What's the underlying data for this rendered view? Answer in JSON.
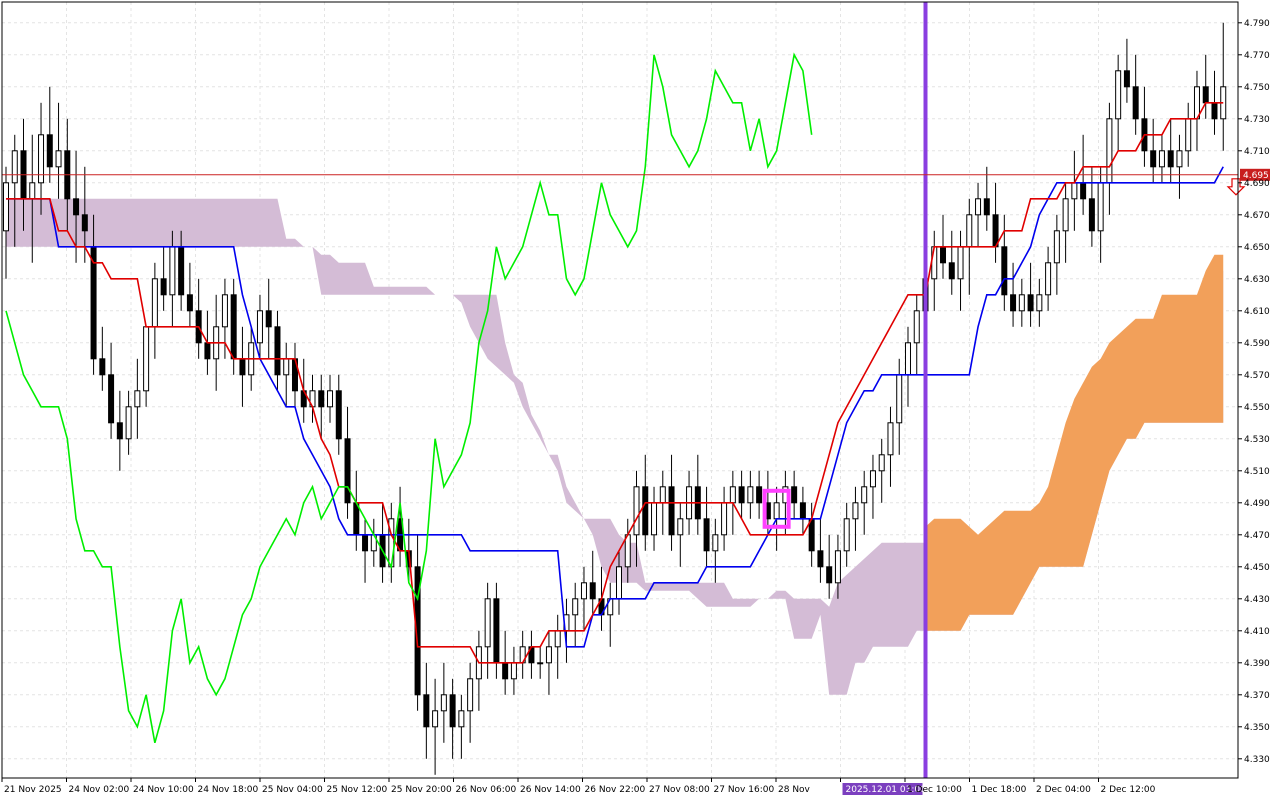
{
  "chart_data": {
    "type": "candlestick",
    "instrument_current_price": "4.695",
    "y_ticks": [
      "4.790",
      "4.770",
      "4.750",
      "4.730",
      "4.710",
      "4.690",
      "4.670",
      "4.650",
      "4.630",
      "4.610",
      "4.590",
      "4.570",
      "4.550",
      "4.530",
      "4.510",
      "4.490",
      "4.470",
      "4.450",
      "4.430",
      "4.410",
      "4.390",
      "4.370",
      "4.350",
      "4.330"
    ],
    "y_range": [
      4.318,
      4.803
    ],
    "x_labels": [
      "21 Nov 2025",
      "24 Nov 02:00",
      "24 Nov 10:00",
      "24 Nov 18:00",
      "25 Nov 04:00",
      "25 Nov 12:00",
      "25 Nov 20:00",
      "26 Nov 06:00",
      "26 Nov 14:00",
      "26 Nov 22:00",
      "27 Nov 08:00",
      "27 Nov 16:00",
      "28 Nov",
      "2025.12.01 03:00",
      "1 Dec 10:00",
      "1 Dec 18:00",
      "2 Dec 04:00",
      "2 Dec 12:00"
    ],
    "highlighted_x_label": "2025.12.01 03:00",
    "bar_count": 140,
    "current_bar_index": 105,
    "candles": [
      [
        4.66,
        4.7,
        4.63,
        4.69
      ],
      [
        4.69,
        4.72,
        4.65,
        4.71
      ],
      [
        4.71,
        4.73,
        4.66,
        4.68
      ],
      [
        4.68,
        4.72,
        4.64,
        4.69
      ],
      [
        4.69,
        4.74,
        4.67,
        4.72
      ],
      [
        4.72,
        4.75,
        4.69,
        4.7
      ],
      [
        4.7,
        4.74,
        4.68,
        4.71
      ],
      [
        4.71,
        4.73,
        4.66,
        4.68
      ],
      [
        4.68,
        4.71,
        4.64,
        4.67
      ],
      [
        4.67,
        4.7,
        4.64,
        4.66
      ],
      [
        4.65,
        4.67,
        4.57,
        4.58
      ],
      [
        4.58,
        4.6,
        4.56,
        4.57
      ],
      [
        4.57,
        4.59,
        4.53,
        4.54
      ],
      [
        4.54,
        4.56,
        4.51,
        4.53
      ],
      [
        4.53,
        4.56,
        4.52,
        4.55
      ],
      [
        4.55,
        4.58,
        4.53,
        4.56
      ],
      [
        4.56,
        4.6,
        4.55,
        4.6
      ],
      [
        4.6,
        4.64,
        4.58,
        4.63
      ],
      [
        4.63,
        4.65,
        4.61,
        4.62
      ],
      [
        4.62,
        4.66,
        4.6,
        4.65
      ],
      [
        4.65,
        4.66,
        4.61,
        4.62
      ],
      [
        4.62,
        4.64,
        4.6,
        4.61
      ],
      [
        4.61,
        4.63,
        4.58,
        4.59
      ],
      [
        4.59,
        4.61,
        4.57,
        4.58
      ],
      [
        4.58,
        4.62,
        4.56,
        4.6
      ],
      [
        4.6,
        4.63,
        4.58,
        4.62
      ],
      [
        4.62,
        4.63,
        4.57,
        4.58
      ],
      [
        4.58,
        4.6,
        4.55,
        4.57
      ],
      [
        4.57,
        4.6,
        4.56,
        4.59
      ],
      [
        4.59,
        4.62,
        4.58,
        4.61
      ],
      [
        4.61,
        4.63,
        4.58,
        4.6
      ],
      [
        4.6,
        4.61,
        4.56,
        4.57
      ],
      [
        4.57,
        4.59,
        4.55,
        4.58
      ],
      [
        4.58,
        4.59,
        4.55,
        4.56
      ],
      [
        4.56,
        4.58,
        4.54,
        4.55
      ],
      [
        4.55,
        4.57,
        4.54,
        4.56
      ],
      [
        4.56,
        4.57,
        4.53,
        4.55
      ],
      [
        4.55,
        4.57,
        4.54,
        4.56
      ],
      [
        4.56,
        4.57,
        4.52,
        4.53
      ],
      [
        4.53,
        4.55,
        4.48,
        4.49
      ],
      [
        4.49,
        4.51,
        4.46,
        4.47
      ],
      [
        4.47,
        4.48,
        4.44,
        4.46
      ],
      [
        4.46,
        4.48,
        4.45,
        4.47
      ],
      [
        4.47,
        4.49,
        4.44,
        4.45
      ],
      [
        4.45,
        4.49,
        4.44,
        4.48
      ],
      [
        4.48,
        4.5,
        4.45,
        4.46
      ],
      [
        4.46,
        4.48,
        4.44,
        4.45
      ],
      [
        4.45,
        4.47,
        4.36,
        4.37
      ],
      [
        4.37,
        4.39,
        4.33,
        4.35
      ],
      [
        4.35,
        4.38,
        4.32,
        4.36
      ],
      [
        4.36,
        4.39,
        4.34,
        4.37
      ],
      [
        4.37,
        4.38,
        4.33,
        4.35
      ],
      [
        4.35,
        4.37,
        4.33,
        4.36
      ],
      [
        4.36,
        4.39,
        4.34,
        4.38
      ],
      [
        4.38,
        4.41,
        4.36,
        4.4
      ],
      [
        4.4,
        4.44,
        4.38,
        4.43
      ],
      [
        4.43,
        4.44,
        4.38,
        4.39
      ],
      [
        4.39,
        4.41,
        4.37,
        4.38
      ],
      [
        4.38,
        4.4,
        4.37,
        4.39
      ],
      [
        4.39,
        4.41,
        4.38,
        4.4
      ],
      [
        4.4,
        4.41,
        4.38,
        4.39
      ],
      [
        4.39,
        4.4,
        4.38,
        4.39
      ],
      [
        4.39,
        4.41,
        4.37,
        4.4
      ],
      [
        4.4,
        4.42,
        4.38,
        4.41
      ],
      [
        4.41,
        4.43,
        4.39,
        4.42
      ],
      [
        4.42,
        4.44,
        4.4,
        4.43
      ],
      [
        4.43,
        4.45,
        4.41,
        4.44
      ],
      [
        4.44,
        4.46,
        4.42,
        4.43
      ],
      [
        4.43,
        4.45,
        4.41,
        4.42
      ],
      [
        4.42,
        4.44,
        4.4,
        4.43
      ],
      [
        4.43,
        4.46,
        4.42,
        4.45
      ],
      [
        4.45,
        4.48,
        4.44,
        4.47
      ],
      [
        4.47,
        4.51,
        4.45,
        4.5
      ],
      [
        4.5,
        4.52,
        4.46,
        4.47
      ],
      [
        4.47,
        4.5,
        4.46,
        4.49
      ],
      [
        4.49,
        4.51,
        4.47,
        4.5
      ],
      [
        4.5,
        4.52,
        4.46,
        4.47
      ],
      [
        4.47,
        4.49,
        4.45,
        4.48
      ],
      [
        4.48,
        4.51,
        4.47,
        4.5
      ],
      [
        4.5,
        4.52,
        4.47,
        4.48
      ],
      [
        4.48,
        4.5,
        4.45,
        4.46
      ],
      [
        4.46,
        4.48,
        4.44,
        4.47
      ],
      [
        4.47,
        4.5,
        4.46,
        4.49
      ],
      [
        4.49,
        4.51,
        4.47,
        4.5
      ],
      [
        4.5,
        4.51,
        4.48,
        4.49
      ],
      [
        4.49,
        4.51,
        4.48,
        4.5
      ],
      [
        4.5,
        4.51,
        4.48,
        4.49
      ],
      [
        4.49,
        4.51,
        4.47,
        4.48
      ],
      [
        4.48,
        4.5,
        4.46,
        4.49
      ],
      [
        4.49,
        4.51,
        4.47,
        4.5
      ],
      [
        4.5,
        4.51,
        4.48,
        4.49
      ],
      [
        4.49,
        4.5,
        4.47,
        4.48
      ],
      [
        4.48,
        4.49,
        4.45,
        4.46
      ],
      [
        4.46,
        4.48,
        4.44,
        4.45
      ],
      [
        4.45,
        4.47,
        4.43,
        4.44
      ],
      [
        4.44,
        4.47,
        4.43,
        4.46
      ],
      [
        4.46,
        4.49,
        4.45,
        4.48
      ],
      [
        4.48,
        4.5,
        4.46,
        4.49
      ],
      [
        4.49,
        4.51,
        4.47,
        4.5
      ],
      [
        4.5,
        4.52,
        4.48,
        4.51
      ],
      [
        4.51,
        4.53,
        4.49,
        4.52
      ],
      [
        4.52,
        4.55,
        4.5,
        4.54
      ],
      [
        4.54,
        4.58,
        4.52,
        4.57
      ],
      [
        4.57,
        4.6,
        4.55,
        4.59
      ],
      [
        4.59,
        4.62,
        4.57,
        4.61
      ],
      [
        4.61,
        4.64,
        4.59,
        4.63
      ],
      [
        4.63,
        4.66,
        4.61,
        4.65
      ],
      [
        4.65,
        4.67,
        4.63,
        4.64
      ],
      [
        4.64,
        4.66,
        4.62,
        4.63
      ],
      [
        4.63,
        4.66,
        4.61,
        4.65
      ],
      [
        4.65,
        4.68,
        4.62,
        4.67
      ],
      [
        4.67,
        4.69,
        4.65,
        4.68
      ],
      [
        4.68,
        4.7,
        4.66,
        4.67
      ],
      [
        4.67,
        4.69,
        4.64,
        4.65
      ],
      [
        4.65,
        4.67,
        4.61,
        4.62
      ],
      [
        4.62,
        4.64,
        4.6,
        4.61
      ],
      [
        4.61,
        4.63,
        4.6,
        4.62
      ],
      [
        4.62,
        4.64,
        4.6,
        4.61
      ],
      [
        4.61,
        4.63,
        4.6,
        4.62
      ],
      [
        4.62,
        4.65,
        4.61,
        4.64
      ],
      [
        4.64,
        4.67,
        4.62,
        4.66
      ],
      [
        4.66,
        4.69,
        4.64,
        4.68
      ],
      [
        4.68,
        4.71,
        4.66,
        4.69
      ],
      [
        4.69,
        4.72,
        4.67,
        4.68
      ],
      [
        4.68,
        4.7,
        4.65,
        4.66
      ],
      [
        4.66,
        4.7,
        4.64,
        4.69
      ],
      [
        4.69,
        4.74,
        4.67,
        4.73
      ],
      [
        4.73,
        4.77,
        4.71,
        4.76
      ],
      [
        4.76,
        4.78,
        4.74,
        4.75
      ],
      [
        4.75,
        4.77,
        4.72,
        4.73
      ],
      [
        4.73,
        4.75,
        4.7,
        4.71
      ],
      [
        4.71,
        4.73,
        4.69,
        4.7
      ],
      [
        4.7,
        4.72,
        4.69,
        4.71
      ],
      [
        4.71,
        4.73,
        4.69,
        4.7
      ],
      [
        4.7,
        4.72,
        4.68,
        4.71
      ],
      [
        4.71,
        4.74,
        4.7,
        4.73
      ],
      [
        4.73,
        4.76,
        4.71,
        4.75
      ],
      [
        4.75,
        4.77,
        4.73,
        4.74
      ],
      [
        4.74,
        4.76,
        4.72,
        4.73
      ],
      [
        4.73,
        4.79,
        4.71,
        4.75
      ]
    ],
    "tenkan": [
      4.68,
      4.68,
      4.68,
      4.68,
      4.68,
      4.68,
      4.66,
      4.66,
      4.65,
      4.65,
      4.64,
      4.64,
      4.63,
      4.63,
      4.63,
      4.63,
      4.6,
      4.6,
      4.6,
      4.6,
      4.6,
      4.6,
      4.6,
      4.59,
      4.59,
      4.59,
      4.58,
      4.58,
      4.58,
      4.58,
      4.58,
      4.58,
      4.58,
      4.58,
      4.56,
      4.55,
      4.53,
      4.52,
      4.5,
      4.5,
      4.49,
      4.49,
      4.49,
      4.49,
      4.47,
      4.46,
      4.46,
      4.4,
      4.4,
      4.4,
      4.4,
      4.4,
      4.4,
      4.4,
      4.39,
      4.39,
      4.39,
      4.39,
      4.39,
      4.39,
      4.4,
      4.4,
      4.41,
      4.41,
      4.41,
      4.41,
      4.41,
      4.42,
      4.43,
      4.45,
      4.46,
      4.47,
      4.48,
      4.49,
      4.49,
      4.49,
      4.49,
      4.49,
      4.49,
      4.49,
      4.49,
      4.49,
      4.49,
      4.49,
      4.48,
      4.47,
      4.47,
      4.47,
      4.47,
      4.47,
      4.47,
      4.47,
      4.48,
      4.5,
      4.52,
      4.54,
      4.55,
      4.56,
      4.57,
      4.58,
      4.59,
      4.6,
      4.61,
      4.62,
      4.62,
      4.62,
      4.65,
      4.65,
      4.65,
      4.65,
      4.65,
      4.65,
      4.65,
      4.65,
      4.66,
      4.66,
      4.66,
      4.68,
      4.68,
      4.68,
      4.68,
      4.69,
      4.69,
      4.7,
      4.7,
      4.7,
      4.7,
      4.71,
      4.71,
      4.71,
      4.72,
      4.72,
      4.72,
      4.73,
      4.73,
      4.73,
      4.73,
      4.74,
      4.74,
      4.74
    ],
    "kijun": [
      4.68,
      4.68,
      4.68,
      4.68,
      4.68,
      4.68,
      4.65,
      4.65,
      4.65,
      4.65,
      4.65,
      4.65,
      4.65,
      4.65,
      4.65,
      4.65,
      4.65,
      4.65,
      4.65,
      4.65,
      4.65,
      4.65,
      4.65,
      4.65,
      4.65,
      4.65,
      4.65,
      4.62,
      4.6,
      4.58,
      4.57,
      4.56,
      4.55,
      4.55,
      4.53,
      4.52,
      4.51,
      4.5,
      4.48,
      4.47,
      4.47,
      4.47,
      4.47,
      4.47,
      4.47,
      4.47,
      4.47,
      4.47,
      4.47,
      4.47,
      4.47,
      4.47,
      4.47,
      4.46,
      4.46,
      4.46,
      4.46,
      4.46,
      4.46,
      4.46,
      4.46,
      4.46,
      4.46,
      4.46,
      4.4,
      4.4,
      4.4,
      4.42,
      4.42,
      4.43,
      4.43,
      4.43,
      4.43,
      4.43,
      4.44,
      4.44,
      4.44,
      4.44,
      4.44,
      4.44,
      4.45,
      4.45,
      4.45,
      4.45,
      4.45,
      4.45,
      4.46,
      4.47,
      4.48,
      4.48,
      4.48,
      4.48,
      4.48,
      4.48,
      4.5,
      4.52,
      4.54,
      4.55,
      4.56,
      4.56,
      4.57,
      4.57,
      4.57,
      4.57,
      4.57,
      4.57,
      4.57,
      4.57,
      4.57,
      4.57,
      4.57,
      4.6,
      4.62,
      4.62,
      4.63,
      4.63,
      4.64,
      4.65,
      4.67,
      4.68,
      4.69,
      4.69,
      4.69,
      4.69,
      4.69,
      4.69,
      4.69,
      4.69,
      4.69,
      4.69,
      4.69,
      4.69,
      4.69,
      4.69,
      4.69,
      4.69,
      4.69,
      4.69,
      4.69,
      4.7
    ],
    "chikou": [
      4.61,
      4.59,
      4.57,
      4.56,
      4.55,
      4.55,
      4.55,
      4.53,
      4.48,
      4.46,
      4.46,
      4.45,
      4.45,
      4.4,
      4.36,
      4.35,
      4.37,
      4.34,
      4.36,
      4.41,
      4.43,
      4.39,
      4.4,
      4.38,
      4.37,
      4.38,
      4.4,
      4.42,
      4.43,
      4.45,
      4.46,
      4.47,
      4.48,
      4.47,
      4.49,
      4.5,
      4.48,
      4.49,
      4.5,
      4.5,
      4.49,
      4.48,
      4.47,
      4.46,
      4.45,
      4.49,
      4.44,
      4.43,
      4.46,
      4.53,
      4.5,
      4.51,
      4.52,
      4.54,
      4.59,
      4.61,
      4.65,
      4.63,
      4.64,
      4.65,
      4.67,
      4.69,
      4.67,
      4.67,
      4.63,
      4.62,
      4.63,
      4.66,
      4.69,
      4.67,
      4.66,
      4.65,
      4.66,
      4.7,
      4.77,
      4.75,
      4.72,
      4.71,
      4.7,
      4.71,
      4.73,
      4.76,
      4.75,
      4.74,
      4.74,
      4.71,
      4.73,
      4.7,
      4.71,
      4.74,
      4.77,
      4.76,
      4.72
    ]
  },
  "price_tag": "4.695"
}
